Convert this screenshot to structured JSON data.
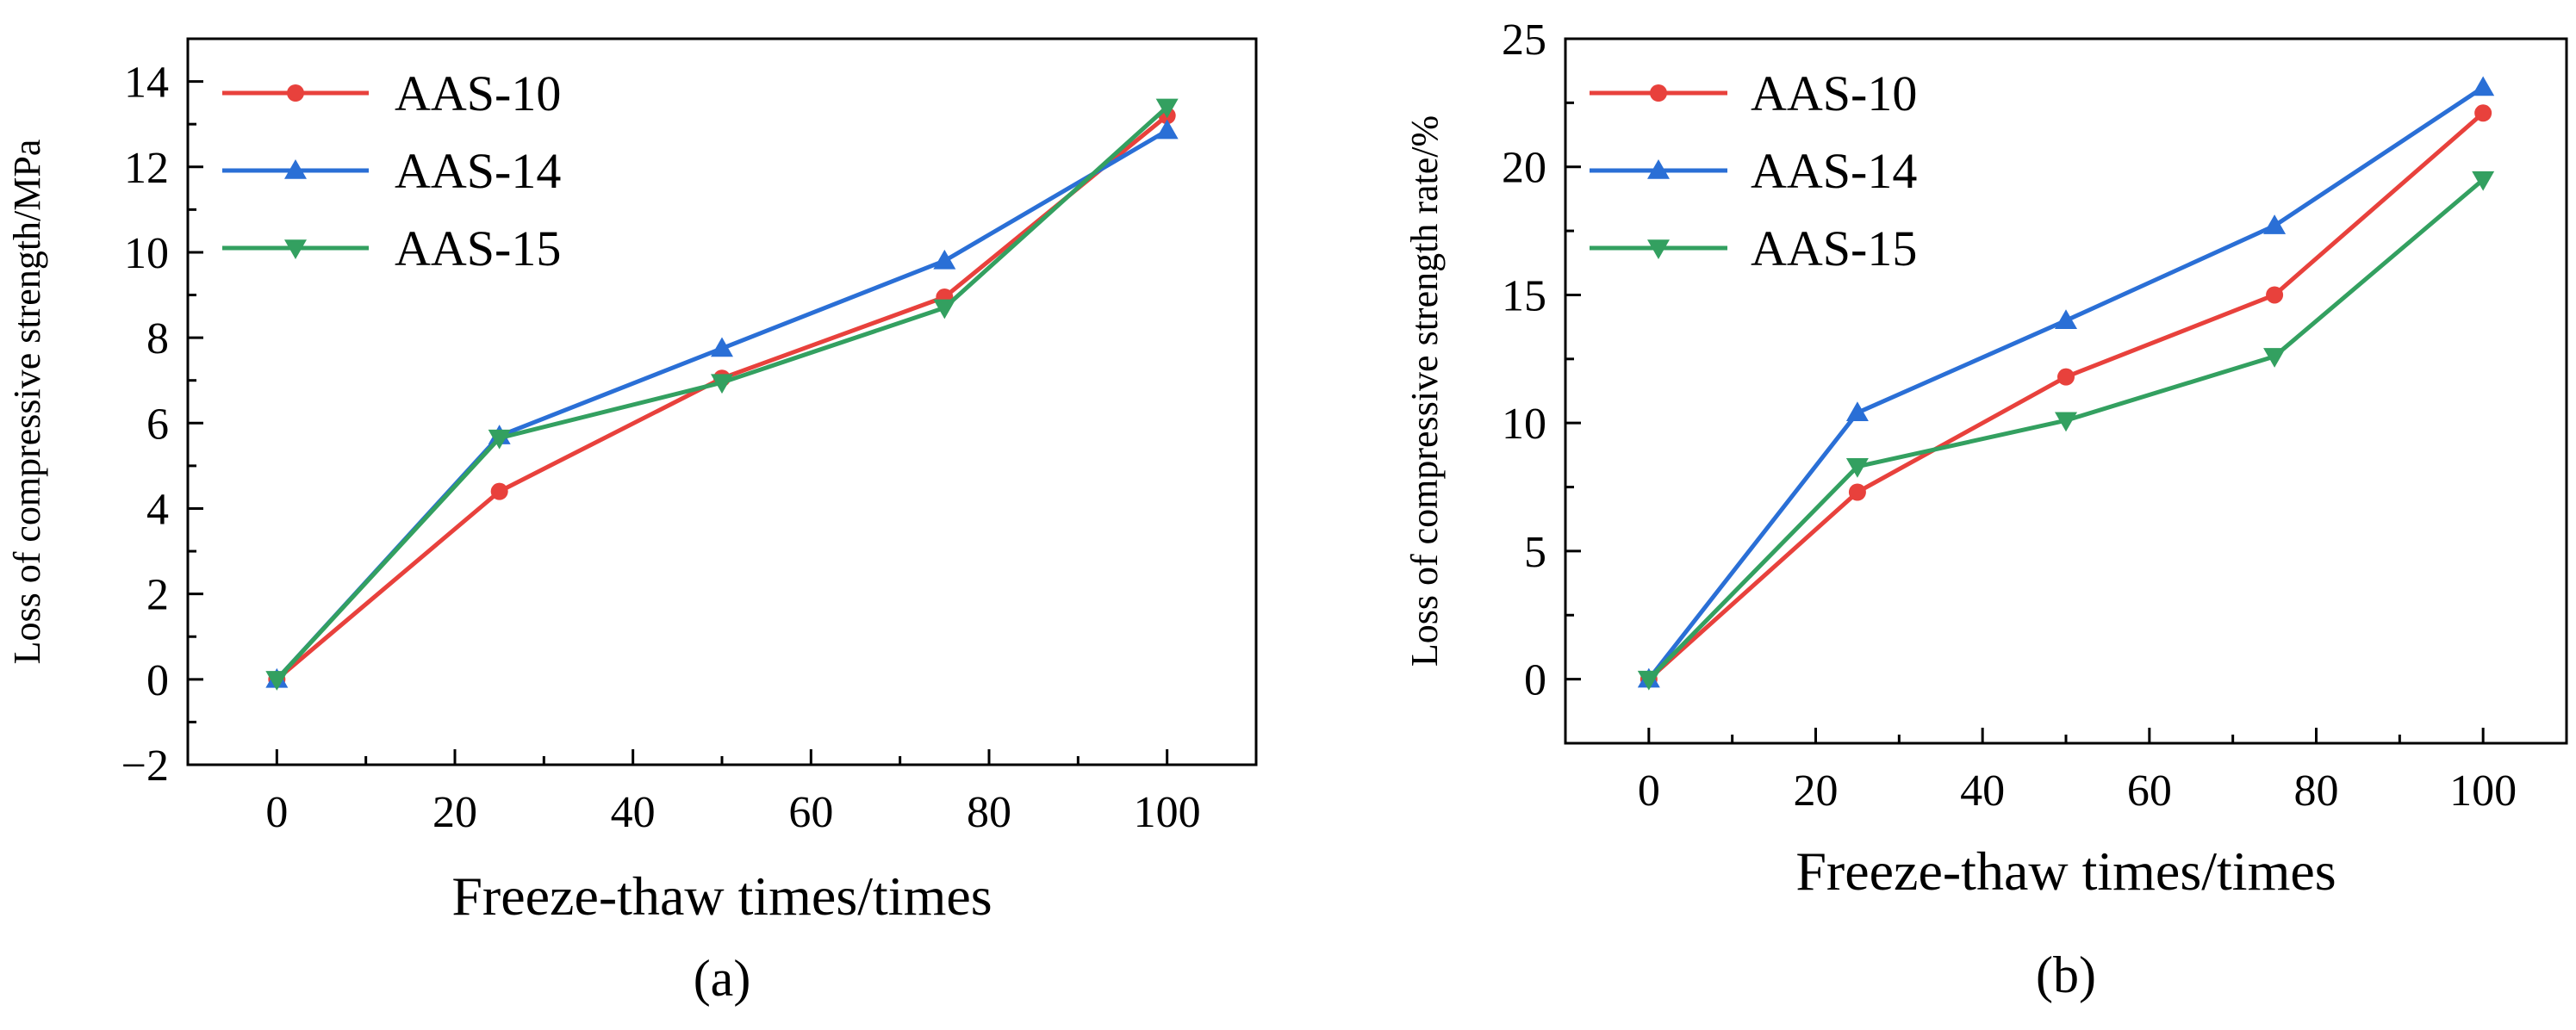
{
  "chart_data": [
    {
      "type": "line",
      "panel": "a",
      "caption": "(a)",
      "xlabel": "Freeze-thaw times/times",
      "ylabel": "Loss of compressive strength/MPa",
      "x": [
        0,
        25,
        50,
        75,
        100
      ],
      "xlim": [
        -10,
        110
      ],
      "ylim": [
        -2,
        15
      ],
      "xticks": [
        0,
        20,
        40,
        60,
        80,
        100
      ],
      "yticks": [
        -2,
        0,
        2,
        4,
        6,
        8,
        10,
        12,
        14
      ],
      "ytick_labels": [
        "−2",
        "0",
        "2",
        "4",
        "6",
        "8",
        "10",
        "12",
        "14"
      ],
      "legend_position": "top-left",
      "series": [
        {
          "name": "AAS-10",
          "color": "#e8413c",
          "marker": "circle",
          "values": [
            0,
            4.4,
            7.05,
            8.95,
            13.2
          ]
        },
        {
          "name": "AAS-14",
          "color": "#2a6fd6",
          "marker": "triangle-up",
          "values": [
            0,
            5.7,
            7.75,
            9.8,
            12.85
          ]
        },
        {
          "name": "AAS-15",
          "color": "#33a060",
          "marker": "triangle-down",
          "values": [
            0,
            5.65,
            6.95,
            8.7,
            13.4
          ]
        }
      ]
    },
    {
      "type": "line",
      "panel": "b",
      "caption": "(b)",
      "xlabel": "Freeze-thaw times/times",
      "ylabel": "Loss of compressive strength rate/%",
      "x": [
        0,
        25,
        50,
        75,
        100
      ],
      "xlim": [
        -10,
        110
      ],
      "ylim": [
        -2.5,
        25
      ],
      "xticks": [
        0,
        20,
        40,
        60,
        80,
        100
      ],
      "yticks": [
        0,
        5,
        10,
        15,
        20,
        25
      ],
      "ytick_labels": [
        "0",
        "5",
        "10",
        "15",
        "20",
        "25"
      ],
      "legend_position": "top-left",
      "series": [
        {
          "name": "AAS-10",
          "color": "#e8413c",
          "marker": "circle",
          "values": [
            0,
            7.3,
            11.8,
            15.0,
            22.1
          ]
        },
        {
          "name": "AAS-14",
          "color": "#2a6fd6",
          "marker": "triangle-up",
          "values": [
            0,
            10.4,
            14.0,
            17.7,
            23.1
          ]
        },
        {
          "name": "AAS-15",
          "color": "#33a060",
          "marker": "triangle-down",
          "values": [
            0,
            8.3,
            10.1,
            12.6,
            19.5
          ]
        }
      ]
    }
  ]
}
